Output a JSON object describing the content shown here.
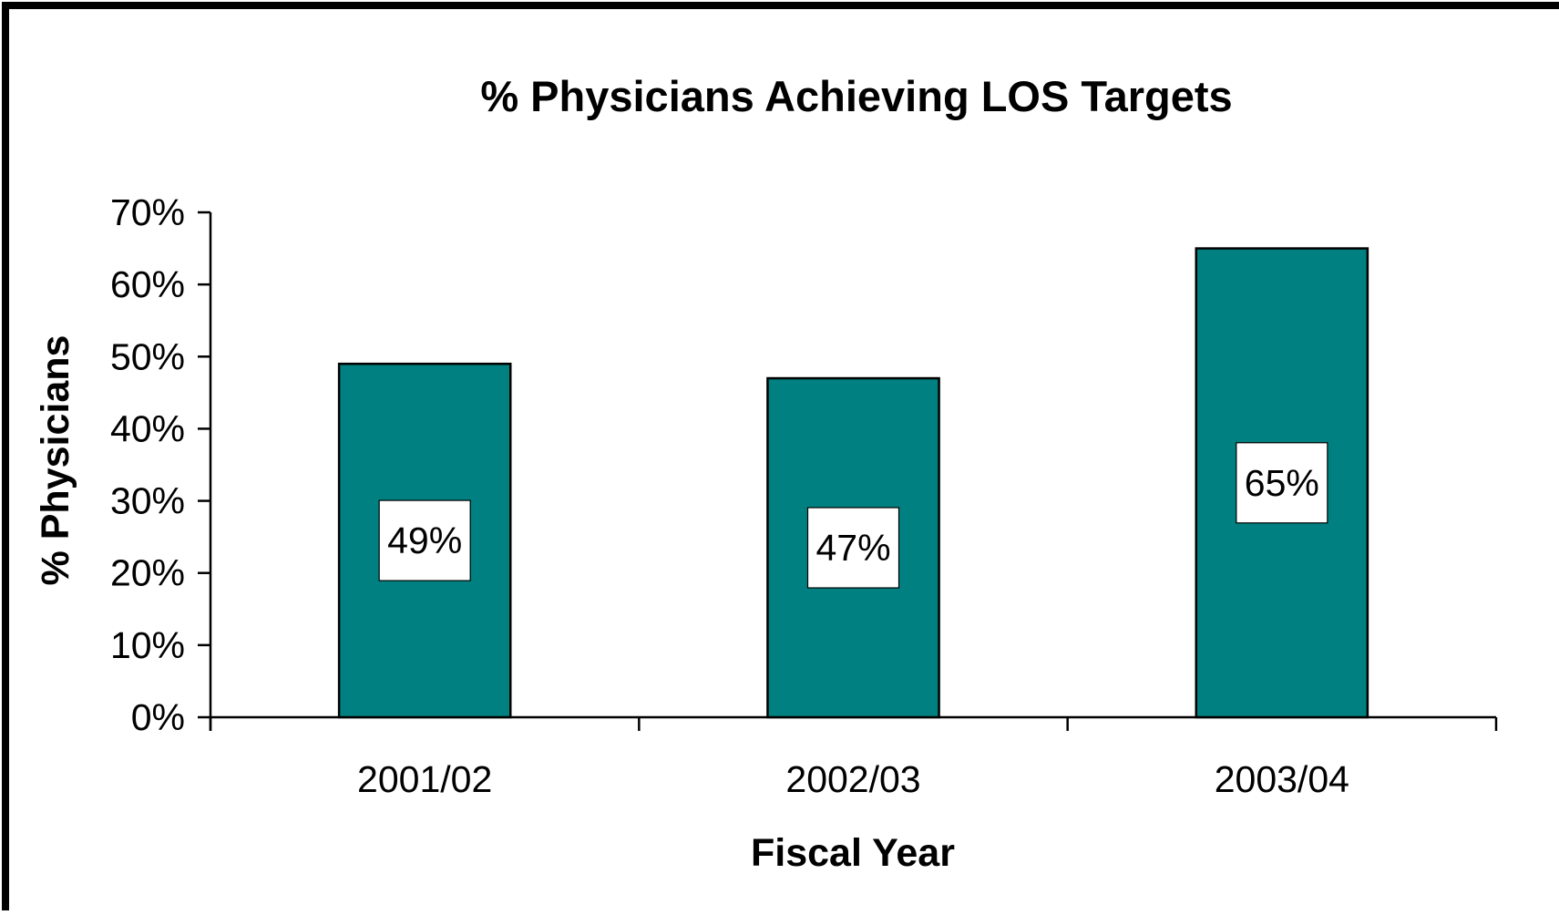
{
  "chart_data": {
    "type": "bar",
    "title": "% Physicians Achieving LOS Targets",
    "xlabel": "Fiscal Year",
    "ylabel": "% Physicians",
    "categories": [
      "2001/02",
      "2002/03",
      "2003/04"
    ],
    "values": [
      49,
      47,
      65
    ],
    "data_labels": [
      "49%",
      "47%",
      "65%"
    ],
    "ylim": [
      0,
      70
    ],
    "y_ticks": [
      0,
      10,
      20,
      30,
      40,
      50,
      60,
      70
    ],
    "y_tick_labels": [
      "0%",
      "10%",
      "20%",
      "30%",
      "40%",
      "50%",
      "60%",
      "70%"
    ],
    "grid": false,
    "legend": "none",
    "colors": {
      "bar": "#008080",
      "bar_stroke": "#000000",
      "frame": "#000000",
      "label_box": "#ffffff"
    }
  }
}
